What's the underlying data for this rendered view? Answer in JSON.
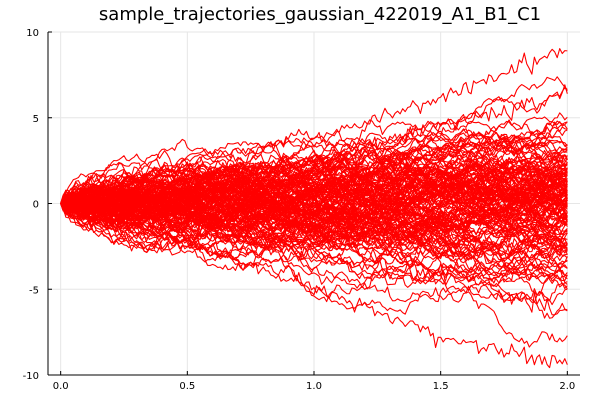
{
  "chart_data": {
    "type": "line",
    "title": "sample_trajectories_gaussian_422019_A1_B1_C1",
    "xlabel": "",
    "ylabel": "",
    "xlim": [
      -0.05,
      2.05
    ],
    "ylim": [
      -10,
      10
    ],
    "x_ticks": [
      0.0,
      0.5,
      1.0,
      1.5,
      2.0
    ],
    "x_tick_labels": [
      "0.0",
      "0.5",
      "1.0",
      "1.5",
      "2.0"
    ],
    "y_ticks": [
      -10,
      -5,
      0,
      5,
      10
    ],
    "y_tick_labels": [
      "-10",
      "-5",
      "0",
      "5",
      "10"
    ],
    "grid": true,
    "legend": "none",
    "line_color": "#ff0000",
    "series_description": "≈150 gaussian random-walk sample paths starting at 0 on t ∈ [0, 2], spread growing with time; endpoints range roughly from -9.5 to 9",
    "representative_series": [
      {
        "x": [
          0.0,
          0.5,
          1.0,
          1.5,
          2.0
        ],
        "values": [
          0.0,
          2.6,
          3.8,
          6.2,
          8.9
        ]
      },
      {
        "x": [
          0.0,
          0.5,
          1.0,
          1.5,
          2.0
        ],
        "values": [
          0.0,
          1.3,
          2.4,
          4.6,
          6.4
        ]
      },
      {
        "x": [
          0.0,
          0.5,
          1.0,
          1.5,
          2.0
        ],
        "values": [
          0.0,
          0.6,
          1.2,
          2.0,
          3.0
        ]
      },
      {
        "x": [
          0.0,
          0.5,
          1.0,
          1.5,
          2.0
        ],
        "values": [
          0.0,
          -0.4,
          0.3,
          0.8,
          0.5
        ]
      },
      {
        "x": [
          0.0,
          0.5,
          1.0,
          1.5,
          2.0
        ],
        "values": [
          0.0,
          -0.9,
          -1.6,
          -2.4,
          -2.8
        ]
      },
      {
        "x": [
          0.0,
          0.5,
          1.0,
          1.5,
          2.0
        ],
        "values": [
          0.0,
          -1.6,
          -3.0,
          -4.4,
          -6.2
        ]
      },
      {
        "x": [
          0.0,
          0.5,
          1.0,
          1.5,
          2.0
        ],
        "values": [
          0.0,
          -2.3,
          -4.9,
          -7.8,
          -9.4
        ]
      }
    ]
  }
}
